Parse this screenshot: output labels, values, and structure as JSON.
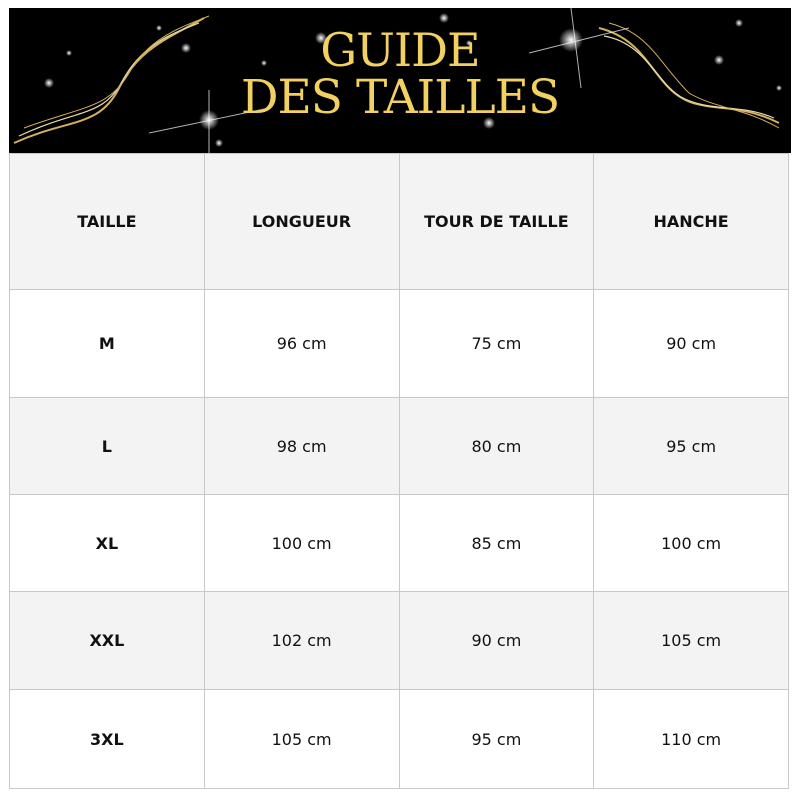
{
  "banner": {
    "title_line1": "GUIDE",
    "title_line2": "DES TAILLES",
    "background_color": "#000000",
    "title_color": "#f3d160"
  },
  "table": {
    "headers": [
      "TAILLE",
      "LONGUEUR",
      "TOUR DE TAILLE",
      "HANCHE"
    ],
    "rows": [
      [
        "M",
        "96 cm",
        "75 cm",
        "90 cm"
      ],
      [
        "L",
        "98 cm",
        "80 cm",
        "95 cm"
      ],
      [
        "XL",
        "100 cm",
        "85 cm",
        "100 cm"
      ],
      [
        "XXL",
        "102 cm",
        "90 cm",
        "105 cm"
      ],
      [
        "3XL",
        "105 cm",
        "95 cm",
        "110 cm"
      ]
    ]
  }
}
